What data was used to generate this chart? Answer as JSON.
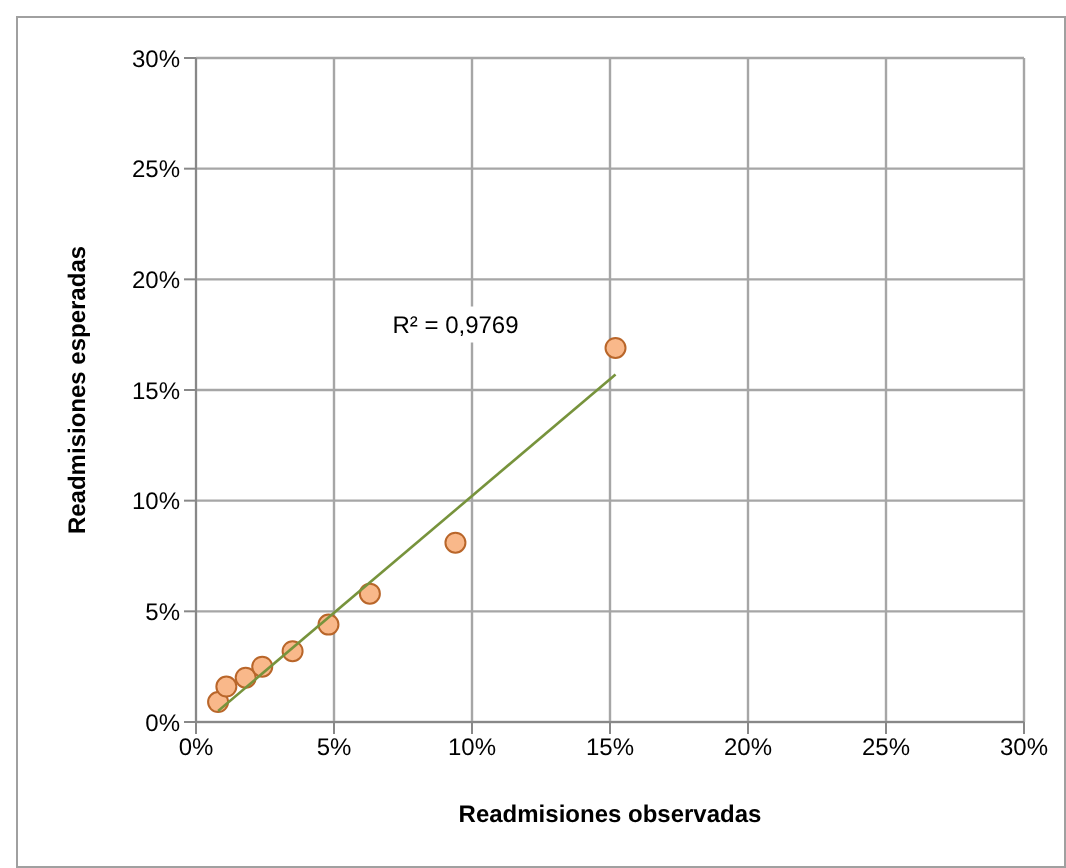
{
  "chart_data": {
    "type": "scatter",
    "xlabel": "Readmisiones observadas",
    "ylabel": "Readmisiones esperadas",
    "xlim": [
      0,
      30
    ],
    "ylim": [
      0,
      30
    ],
    "xticks": [
      {
        "value": 0,
        "label": "0%"
      },
      {
        "value": 5,
        "label": "5%"
      },
      {
        "value": 10,
        "label": "10%"
      },
      {
        "value": 15,
        "label": "15%"
      },
      {
        "value": 20,
        "label": "20%"
      },
      {
        "value": 25,
        "label": "25%"
      },
      {
        "value": 30,
        "label": "30%"
      }
    ],
    "yticks": [
      {
        "value": 0,
        "label": "0%"
      },
      {
        "value": 5,
        "label": "5%"
      },
      {
        "value": 10,
        "label": "10%"
      },
      {
        "value": 15,
        "label": "15%"
      },
      {
        "value": 20,
        "label": "20%"
      },
      {
        "value": 25,
        "label": "25%"
      },
      {
        "value": 30,
        "label": "30%"
      }
    ],
    "grid": true,
    "series": [
      {
        "color": "#f9b88a",
        "marker": "circle",
        "x": [
          0.8,
          1.1,
          1.8,
          2.4,
          3.5,
          4.8,
          6.3,
          9.4,
          15.2
        ],
        "values": [
          0.9,
          1.6,
          2.0,
          2.5,
          3.2,
          4.4,
          5.8,
          8.1,
          16.9
        ]
      },
      {
        "type": "line",
        "color": "#77933c",
        "marker": "none",
        "x": [
          0.8,
          15.2
        ],
        "values": [
          0.5,
          15.7
        ]
      }
    ],
    "annotations": [
      "R² = 0,9769"
    ]
  }
}
